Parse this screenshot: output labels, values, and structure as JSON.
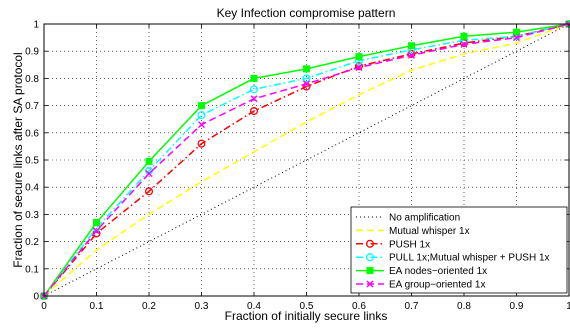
{
  "chart_data": {
    "type": "line",
    "title": "Key Infection compromise pattern",
    "xlabel": "Fraction of initially secure links",
    "ylabel": "Fraction of secure links after SA protocol",
    "xlim": [
      0,
      1
    ],
    "ylim": [
      0,
      1
    ],
    "x_ticks": [
      "0",
      "0.1",
      "0.2",
      "0.3",
      "0.4",
      "0.5",
      "0.6",
      "0.7",
      "0.8",
      "0.9",
      "1"
    ],
    "y_ticks": [
      "0",
      "0.1",
      "0.2",
      "0.3",
      "0.4",
      "0.5",
      "0.6",
      "0.7",
      "0.8",
      "0.9",
      "1"
    ],
    "grid": true,
    "legend_position": "bottom-right",
    "x": [
      0,
      0.1,
      0.2,
      0.3,
      0.4,
      0.5,
      0.6,
      0.7,
      0.8,
      0.9,
      1.0
    ],
    "series": [
      {
        "name": "No amplification",
        "color": "#000000",
        "style": "dotted",
        "marker": "none",
        "values": [
          0,
          0.1,
          0.2,
          0.3,
          0.4,
          0.5,
          0.6,
          0.7,
          0.8,
          0.9,
          1.0
        ]
      },
      {
        "name": "Mutual whisper 1x",
        "color": "#ffff00",
        "style": "dashed",
        "marker": "none",
        "values": [
          0,
          0.17,
          0.3,
          0.42,
          0.53,
          0.64,
          0.74,
          0.83,
          0.89,
          0.93,
          1.0
        ]
      },
      {
        "name": "PUSH 1x",
        "color": "#ff0000",
        "style": "dashdot",
        "marker": "circle",
        "values": [
          0,
          0.23,
          0.385,
          0.56,
          0.68,
          0.77,
          0.845,
          0.89,
          0.93,
          0.955,
          1.0
        ]
      },
      {
        "name": "PULL 1x;Mutual whisper + PUSH 1x",
        "color": "#00ffff",
        "style": "dashdot",
        "marker": "circle",
        "values": [
          0,
          0.25,
          0.46,
          0.665,
          0.76,
          0.8,
          0.865,
          0.905,
          0.94,
          0.955,
          1.0
        ]
      },
      {
        "name": "EA nodes−oriented 1x",
        "color": "#00ff00",
        "style": "solid",
        "marker": "square",
        "values": [
          0,
          0.27,
          0.495,
          0.7,
          0.8,
          0.835,
          0.88,
          0.92,
          0.955,
          0.97,
          1.0
        ]
      },
      {
        "name": "EA group−oriented 1x",
        "color": "#ff00ff",
        "style": "dashed",
        "marker": "x",
        "values": [
          0,
          0.24,
          0.45,
          0.63,
          0.725,
          0.78,
          0.84,
          0.885,
          0.925,
          0.95,
          1.0
        ]
      }
    ]
  }
}
